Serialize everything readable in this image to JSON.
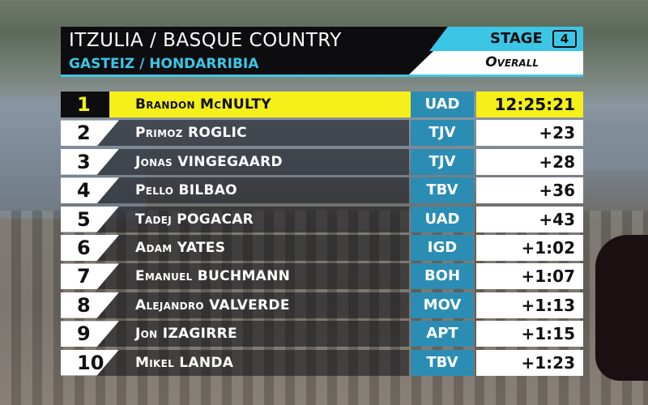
{
  "header": {
    "title": "ITZULIA / BASQUE COUNTRY",
    "subtitle": "GASTEIZ / HONDARRIBIA",
    "stage_label": "STAGE",
    "stage_number": "4",
    "classification": "Overall"
  },
  "colors": {
    "accent": "#3cc6e6",
    "leader": "#f6f01a",
    "team": "#2b8db3"
  },
  "standings": [
    {
      "pos": "1",
      "name": "Brandon McNULTY",
      "team": "UAD",
      "time": "12:25:21"
    },
    {
      "pos": "2",
      "name": "Primoz ROGLIC",
      "team": "TJV",
      "time": "+23"
    },
    {
      "pos": "3",
      "name": "Jonas VINGEGAARD",
      "team": "TJV",
      "time": "+28"
    },
    {
      "pos": "4",
      "name": "Pello BILBAO",
      "team": "TBV",
      "time": "+36"
    },
    {
      "pos": "5",
      "name": "Tadej POGACAR",
      "team": "UAD",
      "time": "+43"
    },
    {
      "pos": "6",
      "name": "Adam YATES",
      "team": "IGD",
      "time": "+1:02"
    },
    {
      "pos": "7",
      "name": "Emanuel BUCHMANN",
      "team": "BOH",
      "time": "+1:07"
    },
    {
      "pos": "8",
      "name": "Alejandro VALVERDE",
      "team": "MOV",
      "time": "+1:13"
    },
    {
      "pos": "9",
      "name": "Jon IZAGIRRE",
      "team": "APT",
      "time": "+1:15"
    },
    {
      "pos": "10",
      "name": "Mikel LANDA",
      "team": "TBV",
      "time": "+1:23"
    }
  ]
}
